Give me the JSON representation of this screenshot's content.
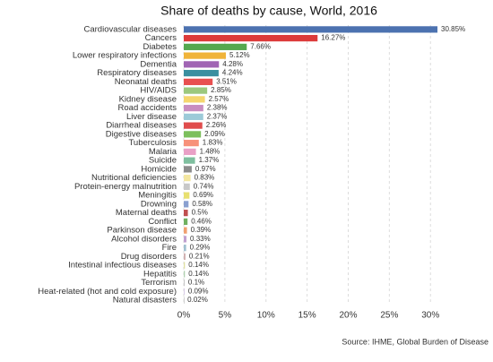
{
  "chart_data": {
    "type": "bar",
    "orientation": "horizontal",
    "title": "Share of deaths by cause, World, 2016",
    "source": "Source: IHME, Global Burden of Disease",
    "categories": [
      "Cardiovascular diseases",
      "Cancers",
      "Diabetes",
      "Lower respiratory infections",
      "Dementia",
      "Respiratory diseases",
      "Neonatal deaths",
      "HIV/AIDS",
      "Kidney disease",
      "Road accidents",
      "Liver disease",
      "Diarrheal diseases",
      "Digestive diseases",
      "Tuberculosis",
      "Malaria",
      "Suicide",
      "Homicide",
      "Nutritional deficiencies",
      "Protein-energy malnutrition",
      "Meningitis",
      "Drowning",
      "Maternal deaths",
      "Conflict",
      "Parkinson disease",
      "Alcohol disorders",
      "Fire",
      "Drug disorders",
      "Intestinal infectious diseases",
      "Hepatitis",
      "Terrorism",
      "Heat-related (hot and cold exposure)",
      "Natural disasters"
    ],
    "values": [
      30.85,
      16.27,
      7.66,
      5.12,
      4.28,
      4.24,
      3.51,
      2.85,
      2.57,
      2.38,
      2.37,
      2.26,
      2.09,
      1.83,
      1.48,
      1.37,
      0.97,
      0.83,
      0.74,
      0.69,
      0.58,
      0.5,
      0.46,
      0.39,
      0.33,
      0.29,
      0.21,
      0.14,
      0.14,
      0.1,
      0.09,
      0.02
    ],
    "value_labels": [
      "30.85%",
      "16.27%",
      "7.66%",
      "5.12%",
      "4.28%",
      "4.24%",
      "3.51%",
      "2.85%",
      "2.57%",
      "2.38%",
      "2.37%",
      "2.26%",
      "2.09%",
      "1.83%",
      "1.48%",
      "1.37%",
      "0.97%",
      "0.83%",
      "0.74%",
      "0.69%",
      "0.58%",
      "0.5%",
      "0.46%",
      "0.39%",
      "0.33%",
      "0.29%",
      "0.21%",
      "0.14%",
      "0.14%",
      "0.1%",
      "0.09%",
      "0.02%"
    ],
    "colors": [
      "#4c72b0",
      "#dc3a3a",
      "#55a84f",
      "#f0b43a",
      "#a064b4",
      "#3a8fa0",
      "#e85050",
      "#9cc87e",
      "#f5d66e",
      "#c88dc0",
      "#9ccad8",
      "#e04c4c",
      "#7cbf5c",
      "#f7917a",
      "#e9a0c6",
      "#7fbf9f",
      "#8c8c8c",
      "#f3e6a0",
      "#c8c8c8",
      "#e8e070",
      "#8aa0d0",
      "#c05050",
      "#70b060",
      "#f0a070",
      "#c0a0d0",
      "#a0c0d0",
      "#d0b0b0",
      "#e0e0a0",
      "#b0d0b0",
      "#c0c0c0",
      "#d0c0e0",
      "#b0b0b0"
    ],
    "xlim": [
      0,
      31.5
    ],
    "xticks": [
      {
        "value": 0,
        "label": "0%"
      },
      {
        "value": 5,
        "label": "5%"
      },
      {
        "value": 10,
        "label": "10%"
      },
      {
        "value": 15,
        "label": "15%"
      },
      {
        "value": 20,
        "label": "20%"
      },
      {
        "value": 25,
        "label": "25%"
      },
      {
        "value": 30,
        "label": "30%"
      }
    ],
    "grid": true
  }
}
